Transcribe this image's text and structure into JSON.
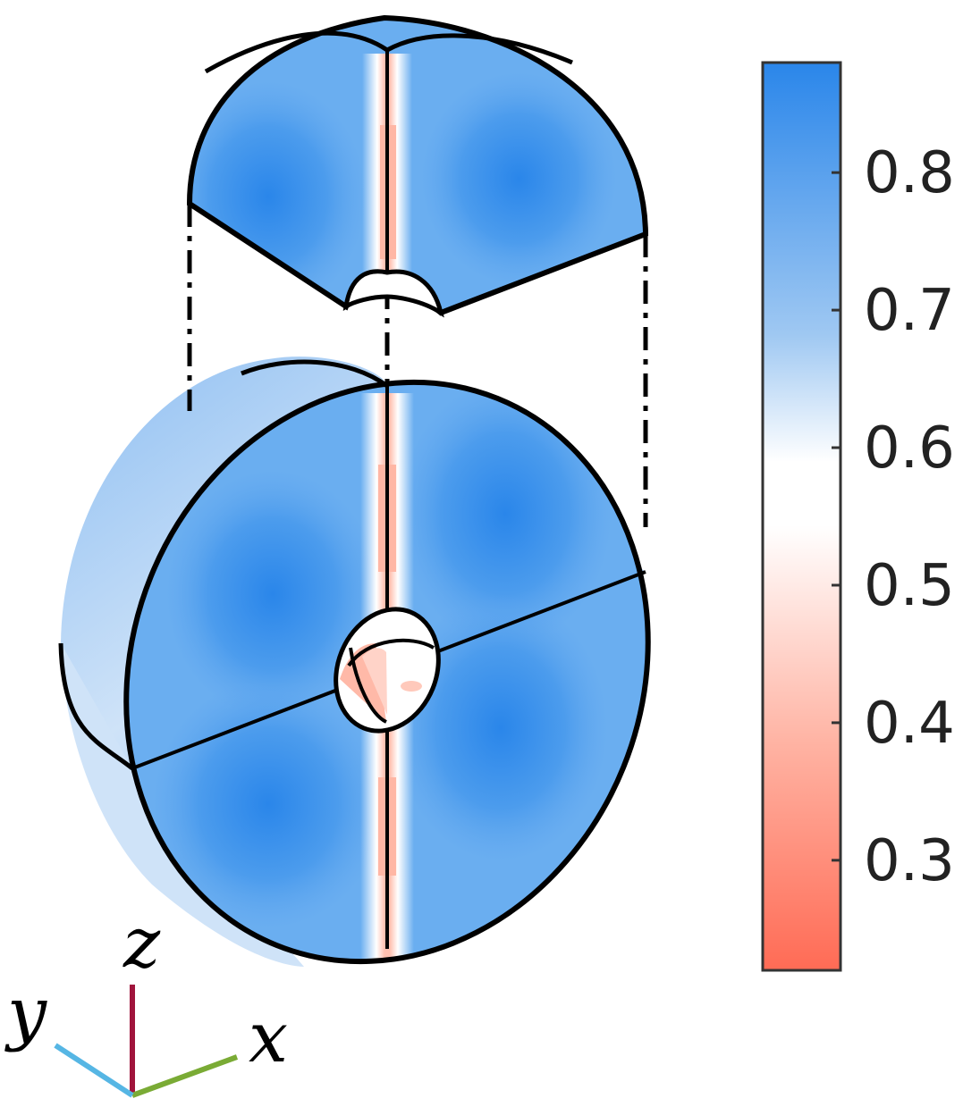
{
  "colorbar": {
    "ticks": [
      {
        "value": 0.8,
        "label": "0.8"
      },
      {
        "value": 0.7,
        "label": "0.7"
      },
      {
        "value": 0.6,
        "label": "0.6"
      },
      {
        "value": 0.5,
        "label": "0.5"
      },
      {
        "value": 0.4,
        "label": "0.4"
      },
      {
        "value": 0.3,
        "label": "0.3"
      }
    ],
    "range": [
      0.22,
      0.88
    ],
    "colors": {
      "low": "#ff6b55",
      "mid": "#ffffff",
      "high": "#2a86ea"
    }
  },
  "axes": {
    "z_label": "z",
    "x_label": "x",
    "y_label": "y",
    "z_color": "#a0143c",
    "x_color": "#7aab35",
    "y_color": "#56b6e4"
  }
}
